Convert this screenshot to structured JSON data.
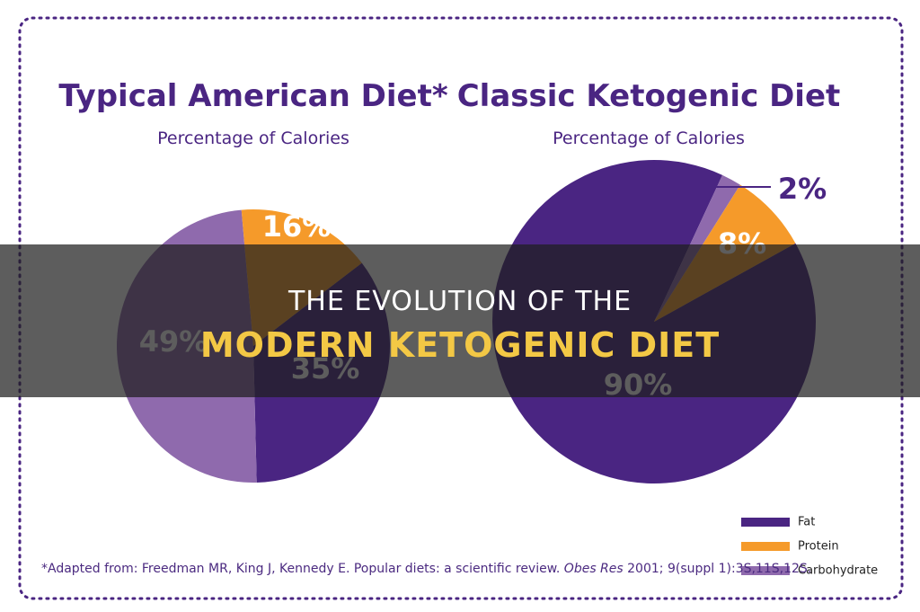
{
  "chart_data": [
    {
      "type": "pie",
      "title": "Typical American Diet*",
      "subtitle": "Percentage of Calories",
      "values": [
        35,
        16,
        49
      ],
      "value_labels": [
        "35%",
        "16%",
        "49%"
      ],
      "colors": [
        "#4a2582",
        "#f59a2a",
        "#8f6aad"
      ]
    },
    {
      "type": "pie",
      "title": "Classic Ketogenic Diet",
      "subtitle": "Percentage of Calories",
      "values": [
        90,
        8,
        2
      ],
      "value_labels": [
        "90%",
        "8%",
        "2%"
      ],
      "colors": [
        "#4a2582",
        "#f59a2a",
        "#8f6aad"
      ]
    }
  ],
  "legend": {
    "entries": [
      {
        "name": "Fat",
        "color": "#4a2582"
      },
      {
        "name": "Protein",
        "color": "#f59a2a"
      },
      {
        "name": "Carbohydrate",
        "color": "#8f6aad"
      }
    ]
  },
  "footnote": [
    "*Adapted from: Freedman MR, King J, Kennedy E. Popular diets: a scientific review. ",
    "Obes Res",
    " 2001; 9(suppl 1):3S,11S,12S."
  ],
  "banner": {
    "line1": "THE EVOLUTION OF THE",
    "line2": "MODERN KETOGENIC DIET"
  }
}
